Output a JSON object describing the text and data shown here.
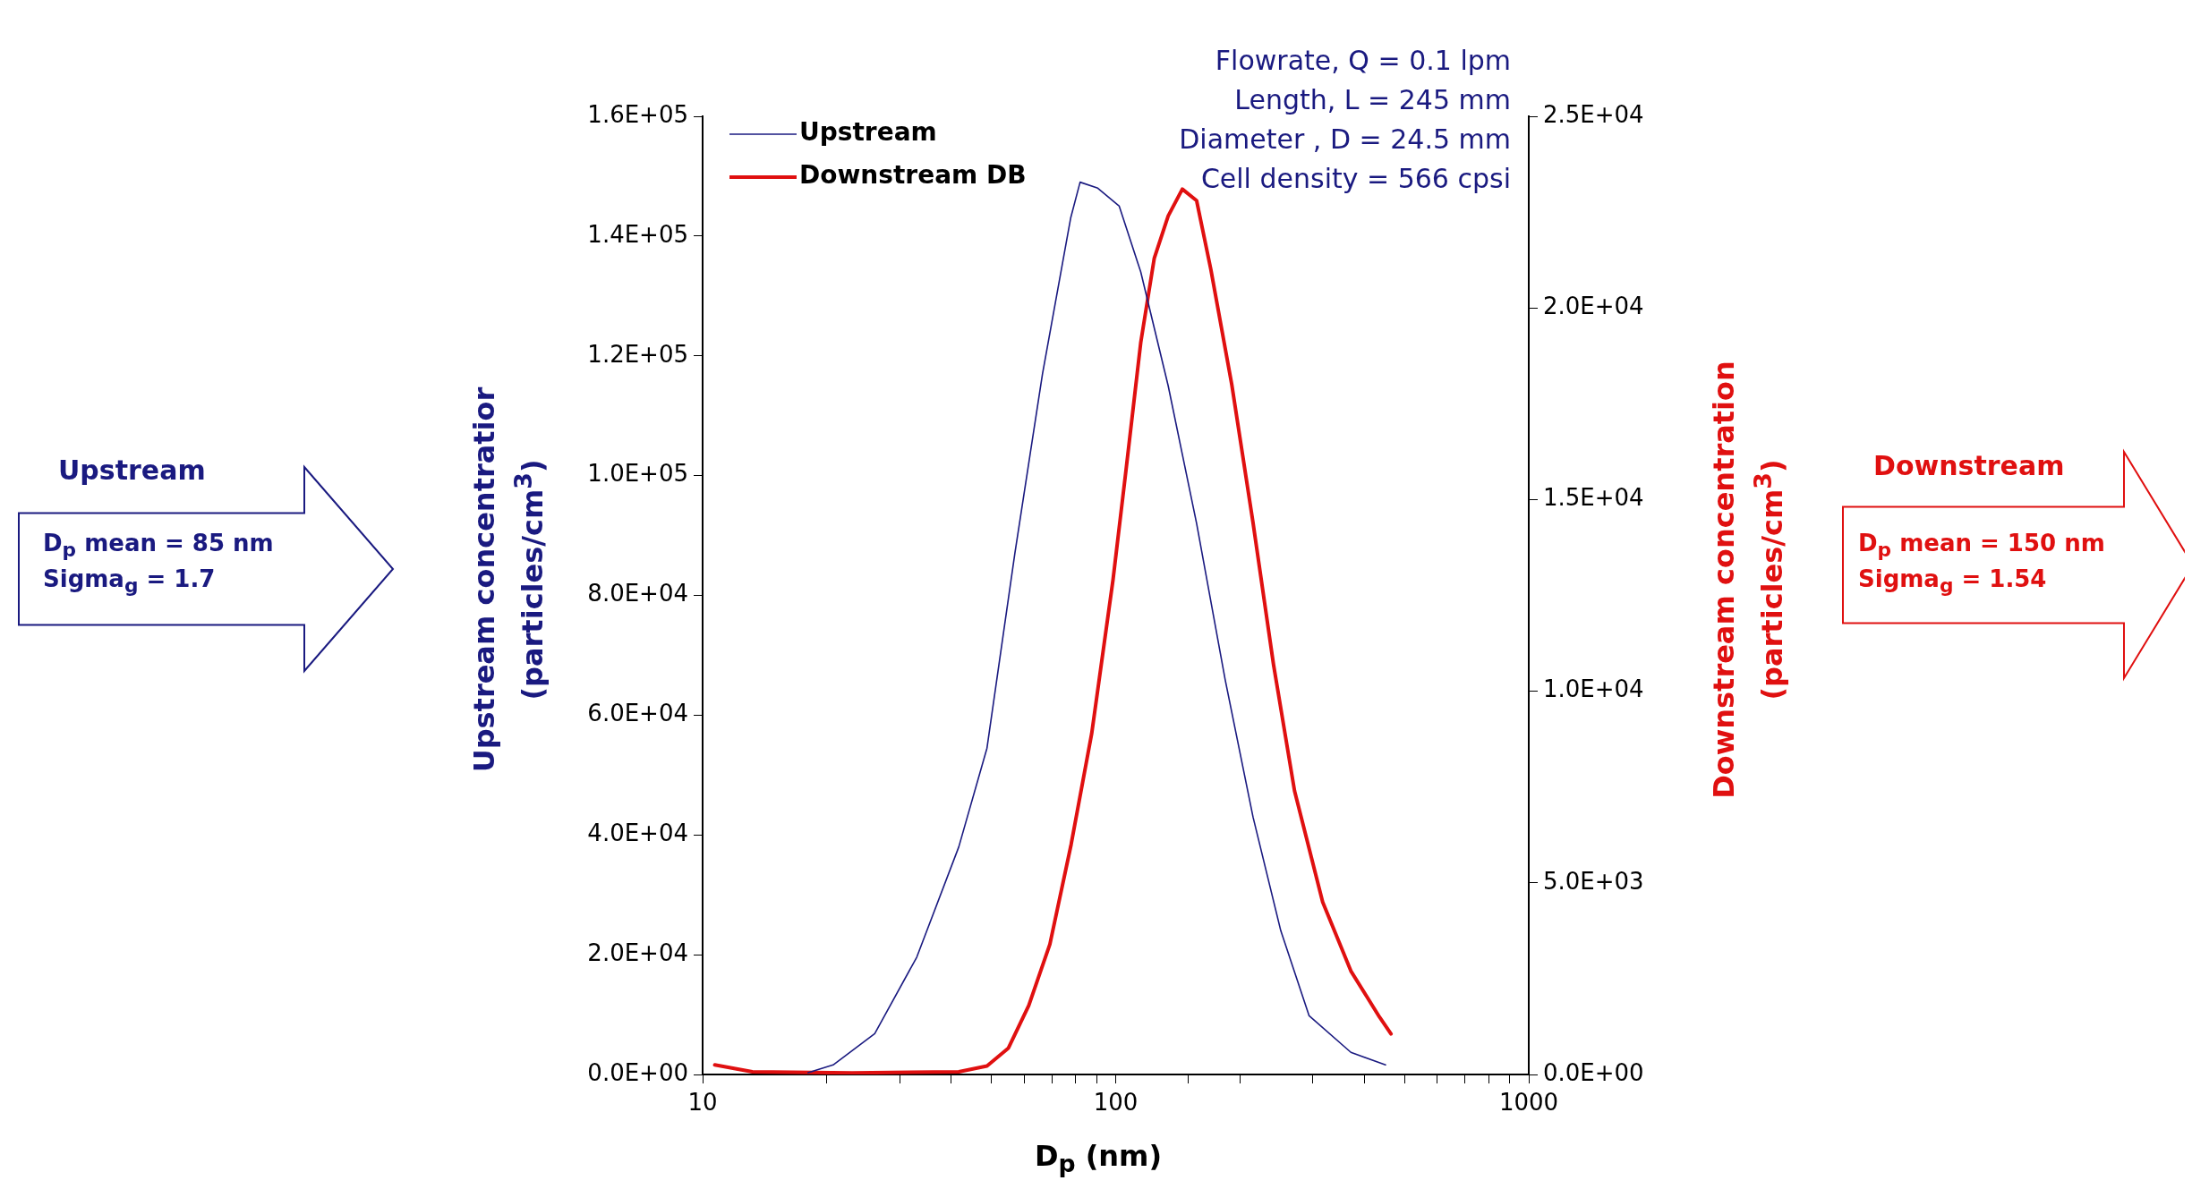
{
  "chart_data": {
    "type": "line",
    "xlabel": "D$_{p}$ (nm)",
    "ylabel": "Upstream concentratior (particles/cm$^{3}$)",
    "y2label": "Downstream concentration (particles/cm$^{3}$)",
    "annotations": [
      "Upstream",
      "D$_{p}$ mean = 85 nm",
      "Sigma$_{g}$ = 1.7",
      "Downstream",
      "D$_{p}$ mean = 150 nm",
      "Sigma$_{g}$ = 1.54",
      "Flowrate, Q = 0.1 lpm",
      "Length, L = 245 mm",
      "Diameter , D = 24.5 mm",
      "Cell density = 566 cpsi"
    ],
    "log": "x",
    "xlim": [
      10,
      1000
    ],
    "xticks": [
      10,
      100,
      1000
    ],
    "ylim": [
      0,
      160000
    ],
    "yticks": [
      {
        "value": 0,
        "label": "0.0E+00"
      },
      {
        "value": 20000,
        "label": "2.0E+04"
      },
      {
        "value": 40000,
        "label": "4.0E+04"
      },
      {
        "value": 60000,
        "label": "6.0E+04"
      },
      {
        "value": 80000,
        "label": "8.0E+04"
      },
      {
        "value": 100000,
        "label": "1.0E+05"
      },
      {
        "value": 120000,
        "label": "1.2E+05"
      },
      {
        "value": 140000,
        "label": "1.4E+05"
      },
      {
        "value": 160000,
        "label": "1.6E+05"
      }
    ],
    "y2lim": [
      0,
      25000
    ],
    "y2ticks": [
      {
        "value": 0,
        "label": "0.0E+00"
      },
      {
        "value": 5000,
        "label": "5.0E+03"
      },
      {
        "value": 10000,
        "label": "1.0E+04"
      },
      {
        "value": 15000,
        "label": "1.5E+04"
      },
      {
        "value": 20000,
        "label": "2.0E+04"
      },
      {
        "value": 25000,
        "label": "2.5E+04"
      }
    ],
    "grid": false,
    "legend": "top left",
    "marker": "none",
    "line_style": "solid",
    "series": [
      {
        "name": "Upstream",
        "color": "#1a1a80",
        "x": [
          18,
          20.7,
          26.1,
          33,
          41.7,
          48.8,
          57,
          66.5,
          77.8,
          82,
          90.5,
          102,
          115,
          134,
          157,
          184,
          215,
          251,
          294,
          371,
          450
        ],
        "values": [
          300,
          1600,
          6800,
          19600,
          38000,
          54500,
          87000,
          117000,
          143000,
          149000,
          148000,
          145000,
          134000,
          115000,
          92000,
          66000,
          43000,
          24000,
          9800,
          3700,
          1600
        ]
      },
      {
        "name": "Downstream DB",
        "color": "#e01010",
        "axis": "y2",
        "x": [
          10.7,
          13.2,
          23,
          41.7,
          48.8,
          55,
          61.6,
          69.3,
          78,
          87.5,
          98.5,
          106,
          115,
          124,
          134,
          145,
          157,
          170,
          191,
          215,
          241,
          271,
          317,
          371,
          435,
          464
        ],
        "values": [
          250,
          70,
          40,
          70,
          220,
          690,
          1800,
          3400,
          6000,
          8900,
          12900,
          15800,
          19100,
          21300,
          22400,
          23100,
          22800,
          21000,
          18000,
          14400,
          10700,
          7400,
          4500,
          2700,
          1500,
          1060
        ]
      }
    ]
  }
}
